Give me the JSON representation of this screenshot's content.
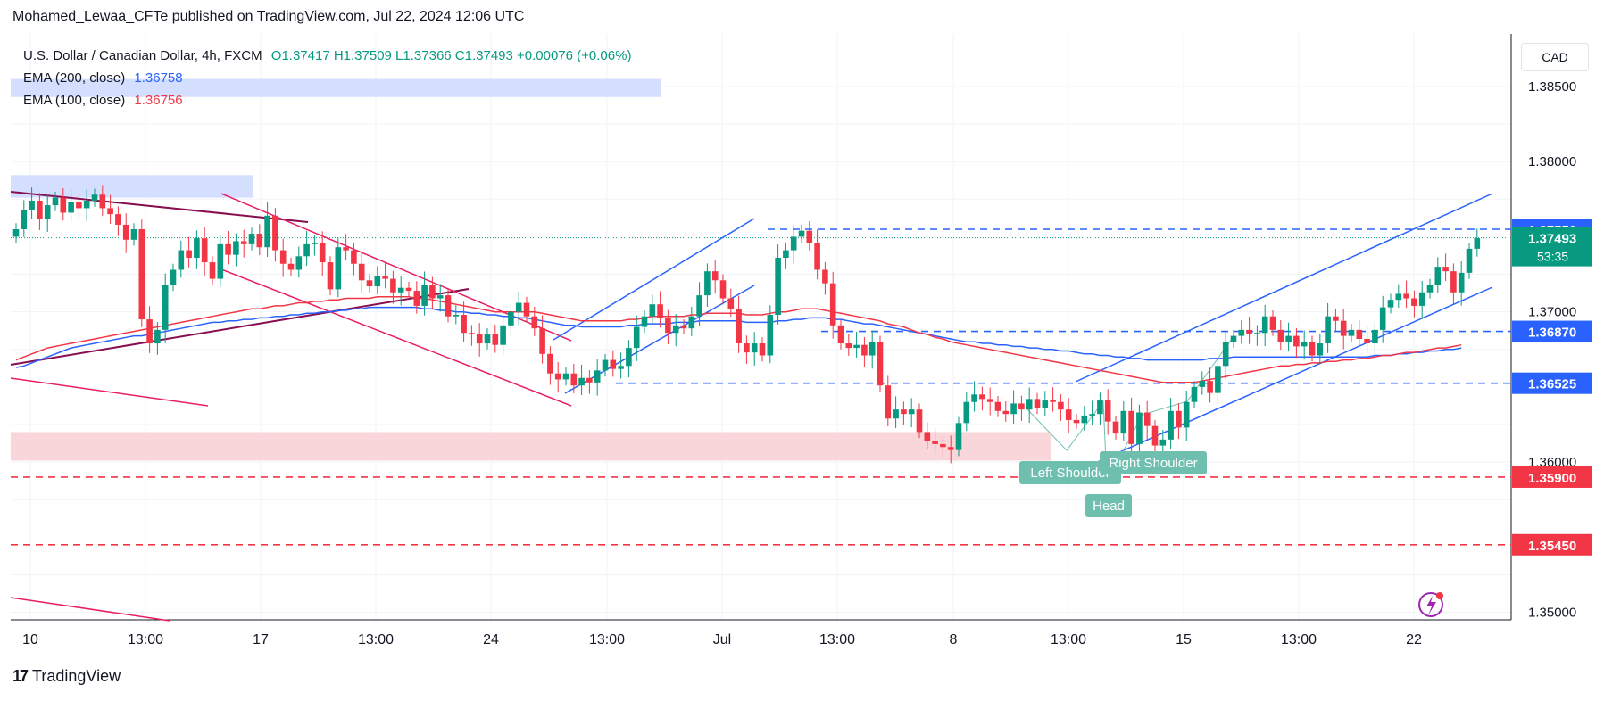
{
  "header": {
    "published": "Mohamed_Lewaa_CFTe published on TradingView.com, Jul 22, 2024 12:06 UTC"
  },
  "legend": {
    "symbol": "U.S. Dollar / Canadian Dollar, 4h, FXCM",
    "ohlc": "O1.37417  H1.37509  L1.37366  C1.37493  +0.00076 (+0.06%)",
    "ema200_label": "EMA (200, close)",
    "ema200_value": "1.36758",
    "ema100_label": "EMA (100, close)",
    "ema100_value": "1.36756"
  },
  "currency_button": "CAD",
  "brand": "TradingView",
  "colors": {
    "up": "#089981",
    "down": "#f23645",
    "ema200": "#2962ff",
    "ema100": "#f23645",
    "channel": "#2962ff",
    "downtrend": "#e91e63",
    "resistance_line": "#880e4f"
  },
  "chart_data": {
    "type": "candlestick",
    "ylim": [
      1.3495,
      1.3885
    ],
    "y_ticks": [
      "1.38500",
      "1.38000",
      "1.37000",
      "1.36000",
      "1.35000"
    ],
    "y_tick_values": [
      1.385,
      1.38,
      1.37,
      1.36,
      1.35
    ],
    "x_tick_labels": [
      "10",
      "13:00",
      "17",
      "13:00",
      "24",
      "13:00",
      "Jul",
      "13:00",
      "8",
      "13:00",
      "15",
      "13:00",
      "22"
    ],
    "price_levels": [
      {
        "label": "1.37550",
        "value": 1.3755,
        "color": "#2962ff",
        "style": "dashed"
      },
      {
        "label": "1.36870",
        "value": 1.3687,
        "color": "#2962ff",
        "style": "dashed"
      },
      {
        "label": "1.36525",
        "value": 1.36525,
        "color": "#2962ff",
        "style": "dashed"
      },
      {
        "label": "1.35900",
        "value": 1.359,
        "color": "#f23645",
        "style": "dashed"
      },
      {
        "label": "1.35450",
        "value": 1.3545,
        "color": "#f23645",
        "style": "dashed"
      }
    ],
    "last_price": {
      "label": "1.37493",
      "countdown": "53:35",
      "value": 1.37493
    },
    "patterns": {
      "left_shoulder": "Left Shoulder",
      "right_shoulder": "Right Shoulder",
      "head": "Head"
    },
    "zones": [
      {
        "from": 1.3843,
        "to": 1.3855,
        "color": "#cfdcff"
      },
      {
        "from": 1.3776,
        "to": 1.3791,
        "color": "#cfdcff"
      },
      {
        "from": 1.3601,
        "to": 1.362,
        "color": "#f8d2d6"
      }
    ],
    "closes": [
      1.3755,
      1.3768,
      1.3774,
      1.3762,
      1.3771,
      1.3776,
      1.3766,
      1.3773,
      1.3769,
      1.3774,
      1.3778,
      1.3769,
      1.3765,
      1.3758,
      1.3748,
      1.3755,
      1.3695,
      1.3679,
      1.3688,
      1.3718,
      1.3728,
      1.3741,
      1.3736,
      1.3749,
      1.3733,
      1.3722,
      1.3745,
      1.3738,
      1.3747,
      1.3745,
      1.3752,
      1.3743,
      1.3764,
      1.3741,
      1.3732,
      1.3728,
      1.3737,
      1.3745,
      1.3746,
      1.3733,
      1.3715,
      1.3743,
      1.3741,
      1.3732,
      1.3721,
      1.3717,
      1.3724,
      1.3722,
      1.3713,
      1.3716,
      1.3714,
      1.3704,
      1.3718,
      1.3709,
      1.3711,
      1.3697,
      1.3698,
      1.3686,
      1.3685,
      1.3679,
      1.3685,
      1.3678,
      1.3691,
      1.37,
      1.3706,
      1.3697,
      1.3689,
      1.3672,
      1.3659,
      1.3655,
      1.3659,
      1.3651,
      1.3656,
      1.3653,
      1.3661,
      1.3668,
      1.3662,
      1.3664,
      1.3676,
      1.369,
      1.3697,
      1.3705,
      1.3696,
      1.3686,
      1.3691,
      1.3689,
      1.3697,
      1.3711,
      1.3727,
      1.3721,
      1.3709,
      1.3702,
      1.3679,
      1.3673,
      1.3679,
      1.3671,
      1.3698,
      1.3736,
      1.3741,
      1.375,
      1.3754,
      1.3746,
      1.3728,
      1.3719,
      1.3691,
      1.3679,
      1.3676,
      1.3678,
      1.3671,
      1.368,
      1.3651,
      1.3629,
      1.3635,
      1.3632,
      1.3635,
      1.362,
      1.3614,
      1.3612,
      1.361,
      1.3608,
      1.3626,
      1.364,
      1.3645,
      1.3642,
      1.364,
      1.3634,
      1.3632,
      1.3639,
      1.3635,
      1.3642,
      1.3636,
      1.3641,
      1.364,
      1.3635,
      1.3628,
      1.3626,
      1.3631,
      1.3632,
      1.3641,
      1.3627,
      1.3619,
      1.3634,
      1.3612,
      1.3633,
      1.3624,
      1.3611,
      1.3615,
      1.3634,
      1.3623,
      1.364,
      1.365,
      1.3654,
      1.3646,
      1.3664,
      1.368,
      1.3684,
      1.3688,
      1.3685,
      1.3686,
      1.3697,
      1.3688,
      1.368,
      1.3684,
      1.3677,
      1.368,
      1.3671,
      1.3679,
      1.3697,
      1.3694,
      1.3684,
      1.3688,
      1.3682,
      1.3679,
      1.3688,
      1.3703,
      1.3708,
      1.3712,
      1.3709,
      1.3704,
      1.3713,
      1.3718,
      1.373,
      1.3727,
      1.3713,
      1.3726,
      1.3742,
      1.3749
    ],
    "ema200": [
      1.3663,
      1.3664,
      1.3666,
      1.3668,
      1.367,
      1.3672,
      1.3674,
      1.3676,
      1.3677,
      1.3678,
      1.3679,
      1.368,
      1.3681,
      1.3682,
      1.3683,
      1.3684,
      1.3684,
      1.3685,
      1.3686,
      1.3687,
      1.3688,
      1.3689,
      1.369,
      1.3691,
      1.3692,
      1.3693,
      1.3693,
      1.3694,
      1.3694,
      1.3695,
      1.3695,
      1.3696,
      1.3696,
      1.3697,
      1.3697,
      1.3698,
      1.3698,
      1.3699,
      1.3699,
      1.37,
      1.37,
      1.3701,
      1.3701,
      1.3702,
      1.3702,
      1.3703,
      1.3703,
      1.3703,
      1.3703,
      1.3703,
      1.3703,
      1.3703,
      1.3702,
      1.3702,
      1.3701,
      1.3701,
      1.37,
      1.37,
      1.3699,
      1.3699,
      1.3698,
      1.3698,
      1.3697,
      1.3697,
      1.3696,
      1.3696,
      1.3695,
      1.3694,
      1.3693,
      1.3692,
      1.3691,
      1.3691,
      1.369,
      1.369,
      1.369,
      1.369,
      1.369,
      1.369,
      1.3691,
      1.3691,
      1.3692,
      1.3692,
      1.3692,
      1.3692,
      1.3693,
      1.3693,
      1.3693,
      1.3694,
      1.3694,
      1.3694,
      1.3694,
      1.3694,
      1.3694,
      1.3693,
      1.3693,
      1.3693,
      1.3693,
      1.3694,
      1.3694,
      1.3695,
      1.3695,
      1.3696,
      1.3696,
      1.3696,
      1.3695,
      1.3695,
      1.3694,
      1.3693,
      1.3692,
      1.3692,
      1.3691,
      1.369,
      1.3689,
      1.3688,
      1.3687,
      1.3686,
      1.3685,
      1.3684,
      1.3683,
      1.3682,
      1.3681,
      1.368,
      1.368,
      1.3679,
      1.3679,
      1.3678,
      1.3678,
      1.3677,
      1.3677,
      1.3676,
      1.3676,
      1.3675,
      1.3675,
      1.3674,
      1.3674,
      1.3673,
      1.3672,
      1.3672,
      1.3671,
      1.3671,
      1.367,
      1.367,
      1.3669,
      1.3669,
      1.3668,
      1.3668,
      1.3668,
      1.3668,
      1.3668,
      1.3668,
      1.3668,
      1.3668,
      1.3669,
      1.3669,
      1.3669,
      1.367,
      1.367,
      1.367,
      1.367,
      1.367,
      1.367,
      1.367,
      1.367,
      1.367,
      1.367,
      1.367,
      1.367,
      1.367,
      1.367,
      1.367,
      1.367,
      1.367,
      1.367,
      1.3671,
      1.3671,
      1.3671,
      1.3672,
      1.3672,
      1.3673,
      1.3673,
      1.3674,
      1.3674,
      1.3675,
      1.3675,
      1.3676
    ],
    "ema100": [
      1.3668,
      1.367,
      1.3672,
      1.3674,
      1.3676,
      1.3677,
      1.3678,
      1.3679,
      1.368,
      1.3681,
      1.3682,
      1.3683,
      1.3684,
      1.3685,
      1.3686,
      1.3687,
      1.3688,
      1.3689,
      1.369,
      1.3691,
      1.3692,
      1.3693,
      1.3694,
      1.3695,
      1.3696,
      1.3697,
      1.3698,
      1.3699,
      1.37,
      1.3701,
      1.3702,
      1.3702,
      1.3703,
      1.3704,
      1.3704,
      1.3705,
      1.3706,
      1.3706,
      1.3707,
      1.3707,
      1.3708,
      1.3708,
      1.3709,
      1.3709,
      1.3709,
      1.3709,
      1.371,
      1.371,
      1.371,
      1.371,
      1.371,
      1.3709,
      1.3709,
      1.3708,
      1.3707,
      1.3706,
      1.3705,
      1.3704,
      1.3703,
      1.3702,
      1.3701,
      1.37,
      1.37,
      1.37,
      1.37,
      1.37,
      1.37,
      1.3699,
      1.3698,
      1.3697,
      1.3696,
      1.3695,
      1.3694,
      1.3694,
      1.3694,
      1.3694,
      1.3694,
      1.3694,
      1.3695,
      1.3695,
      1.3696,
      1.3697,
      1.3697,
      1.3697,
      1.3697,
      1.3697,
      1.3698,
      1.3698,
      1.3699,
      1.3699,
      1.3699,
      1.3699,
      1.3699,
      1.3698,
      1.3698,
      1.3698,
      1.3699,
      1.37,
      1.37,
      1.3701,
      1.3702,
      1.3702,
      1.3702,
      1.3701,
      1.37,
      1.3699,
      1.3698,
      1.3697,
      1.3696,
      1.3695,
      1.3694,
      1.3692,
      1.3691,
      1.369,
      1.3688,
      1.3686,
      1.3685,
      1.3683,
      1.3682,
      1.368,
      1.3679,
      1.3678,
      1.3677,
      1.3676,
      1.3675,
      1.3674,
      1.3673,
      1.3672,
      1.3671,
      1.367,
      1.3669,
      1.3668,
      1.3667,
      1.3666,
      1.3665,
      1.3664,
      1.3663,
      1.3662,
      1.3661,
      1.366,
      1.3659,
      1.3658,
      1.3657,
      1.3656,
      1.3655,
      1.3654,
      1.3653,
      1.3653,
      1.3653,
      1.3653,
      1.3653,
      1.3654,
      1.3655,
      1.3656,
      1.3657,
      1.3658,
      1.3659,
      1.366,
      1.3661,
      1.3662,
      1.3663,
      1.3664,
      1.3664,
      1.3665,
      1.3665,
      1.3666,
      1.3666,
      1.3667,
      1.3667,
      1.3668,
      1.3668,
      1.3669,
      1.3669,
      1.367,
      1.3671,
      1.3671,
      1.3672,
      1.3673,
      1.3673,
      1.3674,
      1.3675,
      1.3676,
      1.3676,
      1.3677,
      1.3678
    ]
  }
}
